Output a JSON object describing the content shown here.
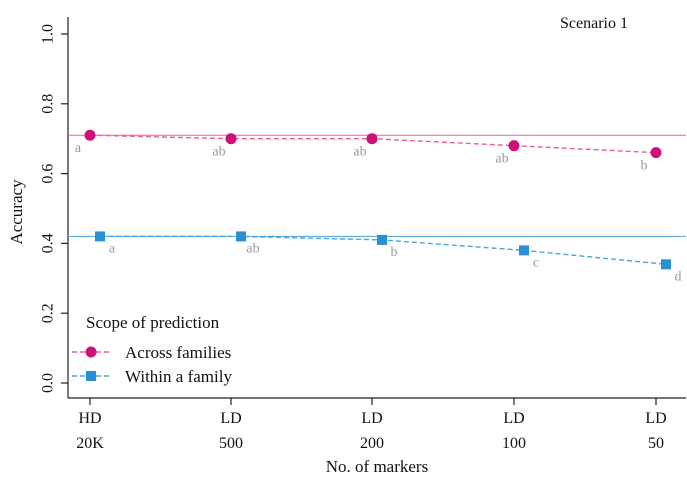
{
  "chart_data": {
    "type": "line",
    "annotation": "Scenario 1",
    "ylabel": "Accuracy",
    "xlabel": "No. of markers",
    "ylim": [
      0.0,
      1.0
    ],
    "yticks": [
      "0.0",
      "0.2",
      "0.4",
      "0.6",
      "0.8",
      "1.0"
    ],
    "categories": [
      {
        "top": "HD",
        "bottom": "20K"
      },
      {
        "top": "LD",
        "bottom": "500"
      },
      {
        "top": "LD",
        "bottom": "200"
      },
      {
        "top": "LD",
        "bottom": "100"
      },
      {
        "top": "LD",
        "bottom": "50"
      }
    ],
    "legend": {
      "title": "Scope of prediction",
      "placement": "bottom-left"
    },
    "series": [
      {
        "name": "Across families",
        "color": "#cc1177",
        "line_color": "#e8609f",
        "marker": "circle",
        "values": [
          0.71,
          0.7,
          0.7,
          0.68,
          0.66
        ],
        "letters": [
          "a",
          "ab",
          "ab",
          "ab",
          "b"
        ],
        "reference": 0.71
      },
      {
        "name": "Within a family",
        "color": "#2b8fd4",
        "line_color": "#4aa3e0",
        "marker": "square",
        "values": [
          0.42,
          0.42,
          0.41,
          0.38,
          0.34
        ],
        "letters": [
          "a",
          "ab",
          "b",
          "c",
          "d"
        ],
        "reference": 0.42
      }
    ]
  }
}
